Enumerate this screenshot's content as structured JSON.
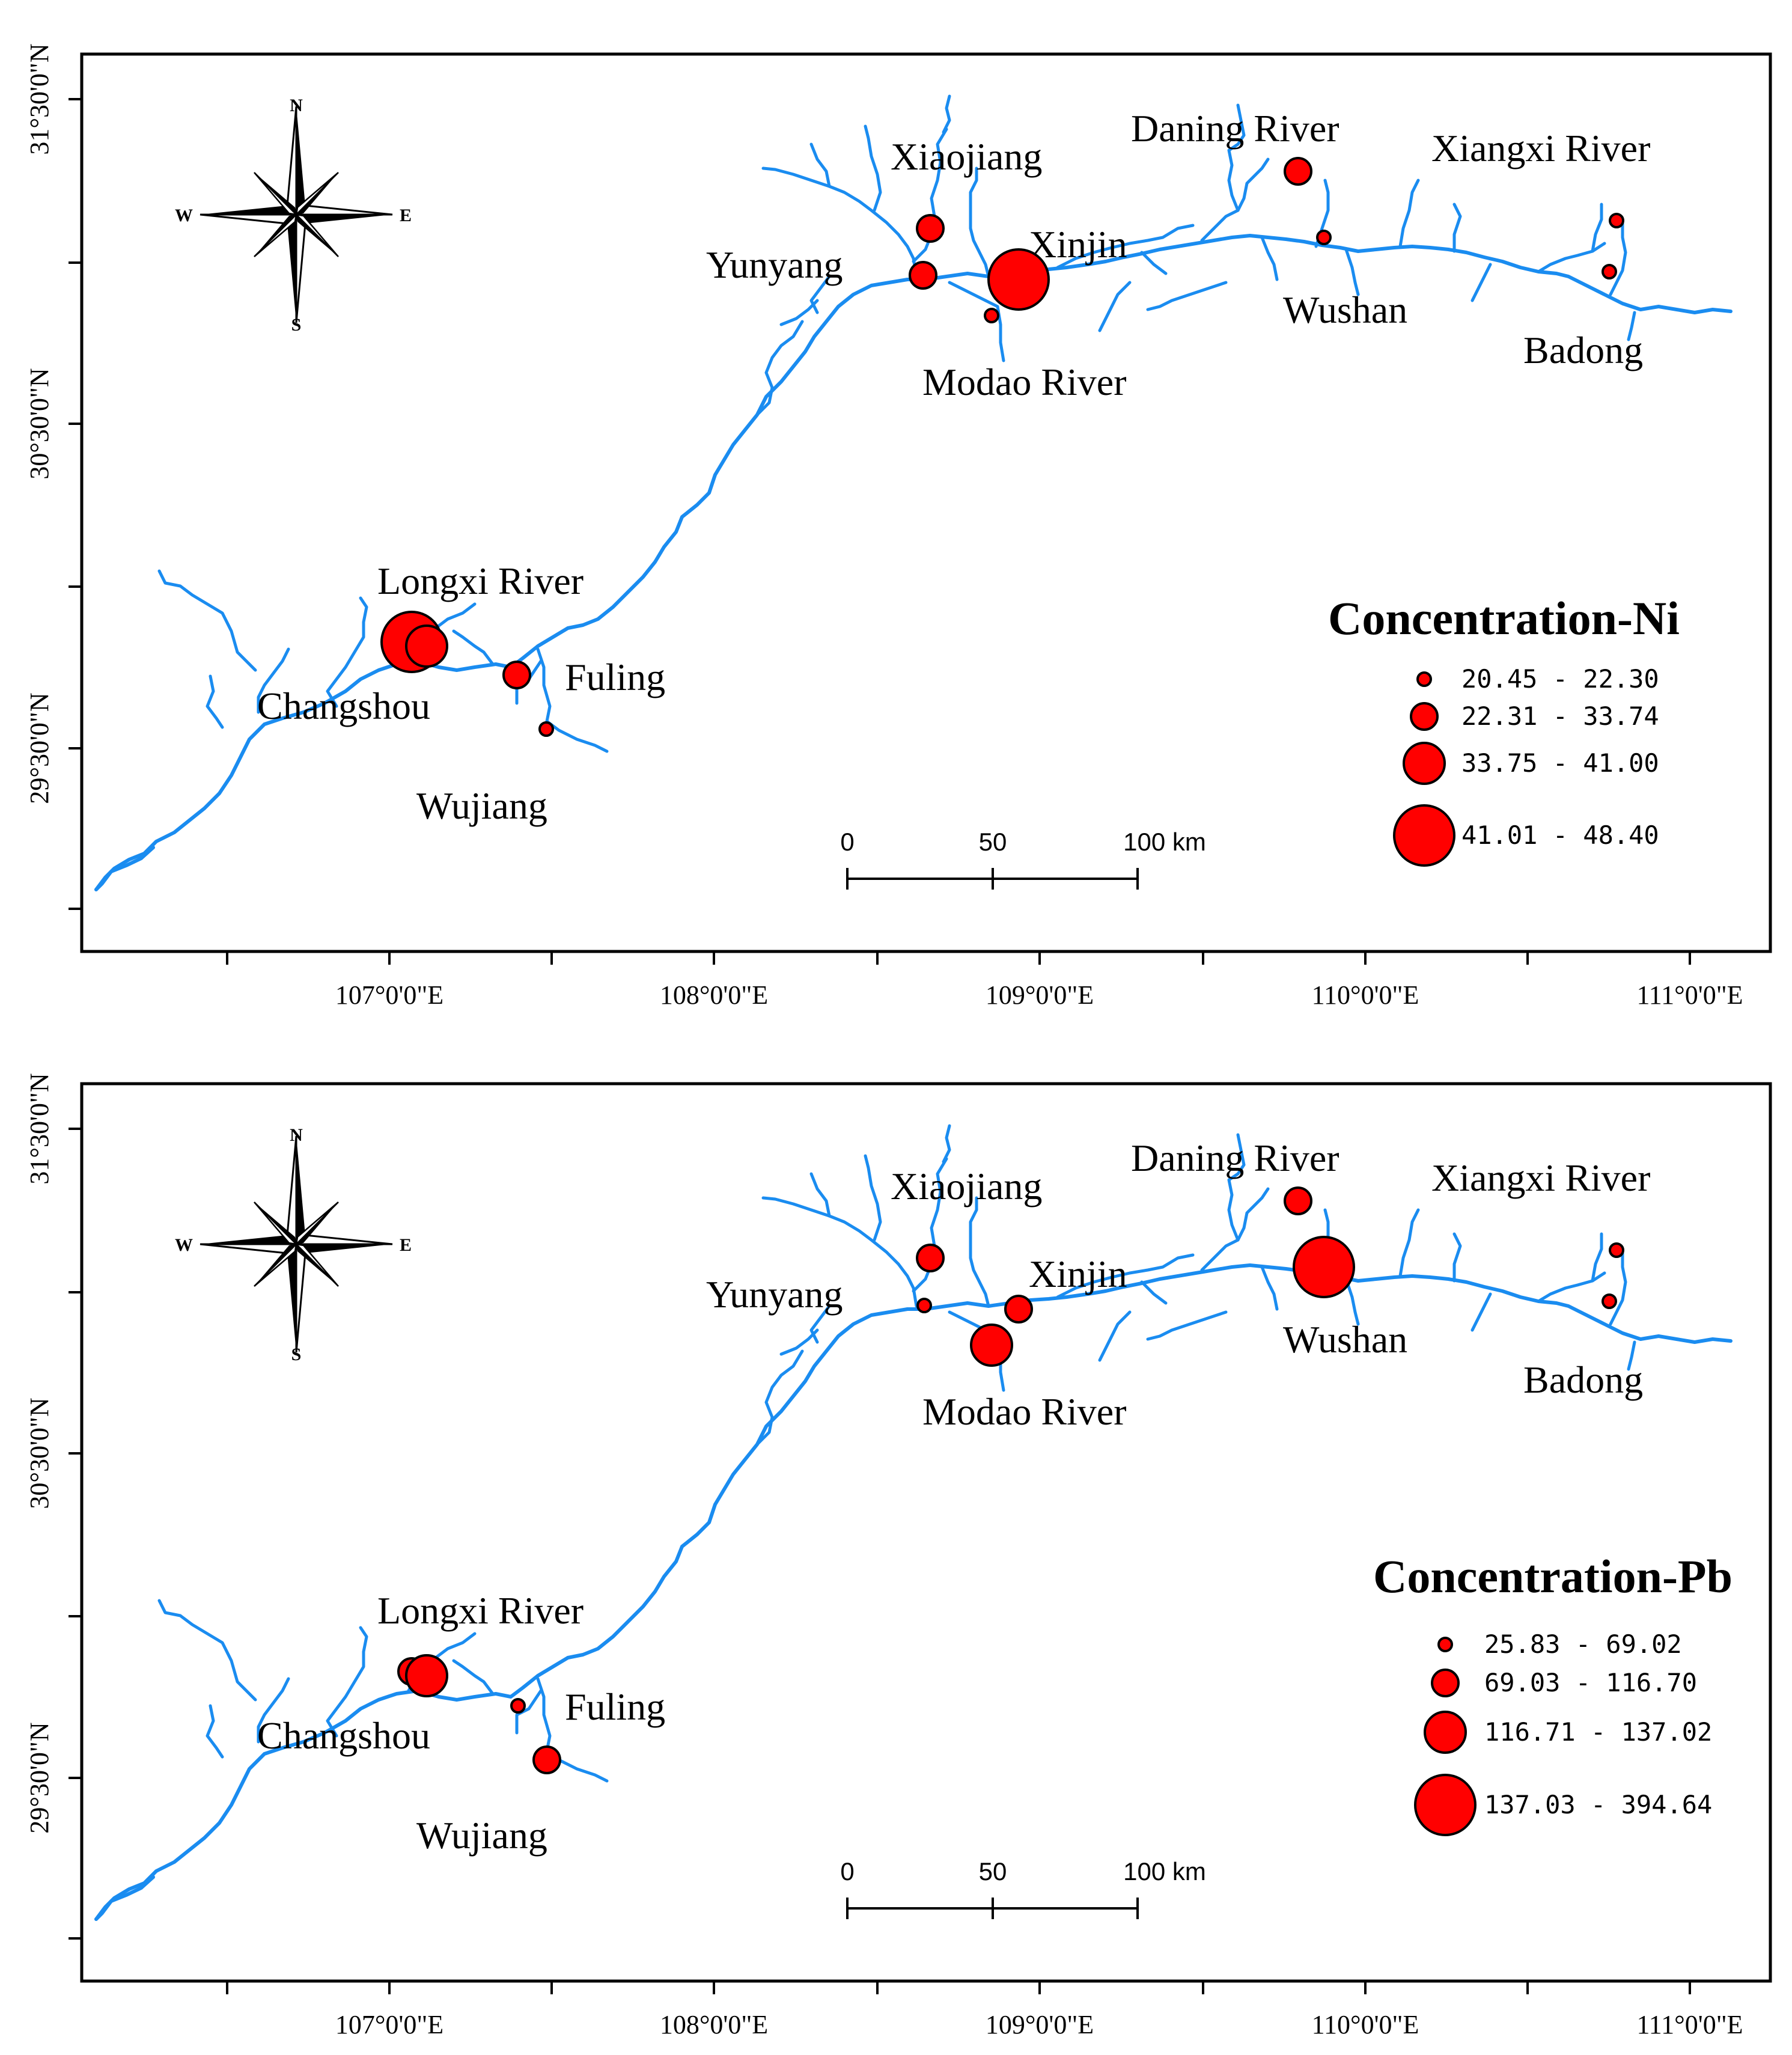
{
  "colors": {
    "river": "#1a8cf0",
    "site_fill": "#ff0000",
    "site_stroke": "#000000"
  },
  "axes": {
    "lat_labels": [
      "31°30'0\"N",
      "30°30'0\"N",
      "29°30'0\"N"
    ],
    "lon_labels": [
      "107°0'0\"E",
      "108°0'0\"E",
      "109°0'0\"E",
      "110°0'0\"E",
      "111°0'0\"E"
    ]
  },
  "compass": {
    "north": "N",
    "south": "S",
    "east": "E",
    "west": "W"
  },
  "scale_bar": {
    "labels": [
      "0",
      "50",
      "100 km"
    ]
  },
  "place_names": {
    "xiaojiang": "Xiaojiang",
    "daning": "Daning River",
    "xiangxi": "Xiangxi River",
    "yunyang": "Yunyang",
    "xinjin": "Xinjin",
    "wushan": "Wushan",
    "modao": "Modao River",
    "badong": "Badong",
    "longxi": "Longxi River",
    "fuling": "Fuling",
    "changshou": "Changshou",
    "wujiang": "Wujiang"
  },
  "panels": [
    {
      "metal": "Ni",
      "legend_title": "Concentration-Ni",
      "classes": [
        "20.45 - 22.30",
        "22.31 - 33.74",
        "33.75 - 41.00",
        "41.01 - 48.40"
      ],
      "sites": [
        {
          "name": "Xiaojiang",
          "size_class": 2
        },
        {
          "name": "Daning River",
          "size_class": 2
        },
        {
          "name": "Xiangxi River",
          "size_class": 1
        },
        {
          "name": "Yunyang",
          "size_class": 2
        },
        {
          "name": "Xinjin",
          "size_class": 4
        },
        {
          "name": "Modao River",
          "size_class": 1
        },
        {
          "name": "Wushan",
          "size_class": 1
        },
        {
          "name": "Badong",
          "size_class": 1
        },
        {
          "name": "Changshou",
          "size_class": 4
        },
        {
          "name": "Longxi River",
          "size_class": 3
        },
        {
          "name": "Fuling",
          "size_class": 2
        },
        {
          "name": "Wujiang",
          "size_class": 1
        }
      ]
    },
    {
      "metal": "Pb",
      "legend_title": "Concentration-Pb",
      "classes": [
        "25.83 - 69.02",
        "69.03 - 116.70",
        "116.71 - 137.02",
        "137.03 - 394.64"
      ],
      "sites": [
        {
          "name": "Xiaojiang",
          "size_class": 2
        },
        {
          "name": "Daning River",
          "size_class": 2
        },
        {
          "name": "Xiangxi River",
          "size_class": 1
        },
        {
          "name": "Yunyang",
          "size_class": 1
        },
        {
          "name": "Xinjin",
          "size_class": 2
        },
        {
          "name": "Modao River",
          "size_class": 3
        },
        {
          "name": "Wushan",
          "size_class": 4
        },
        {
          "name": "Badong",
          "size_class": 1
        },
        {
          "name": "Changshou",
          "size_class": 2
        },
        {
          "name": "Longxi River",
          "size_class": 3
        },
        {
          "name": "Fuling",
          "size_class": 1
        },
        {
          "name": "Wujiang",
          "size_class": 2
        }
      ]
    }
  ]
}
